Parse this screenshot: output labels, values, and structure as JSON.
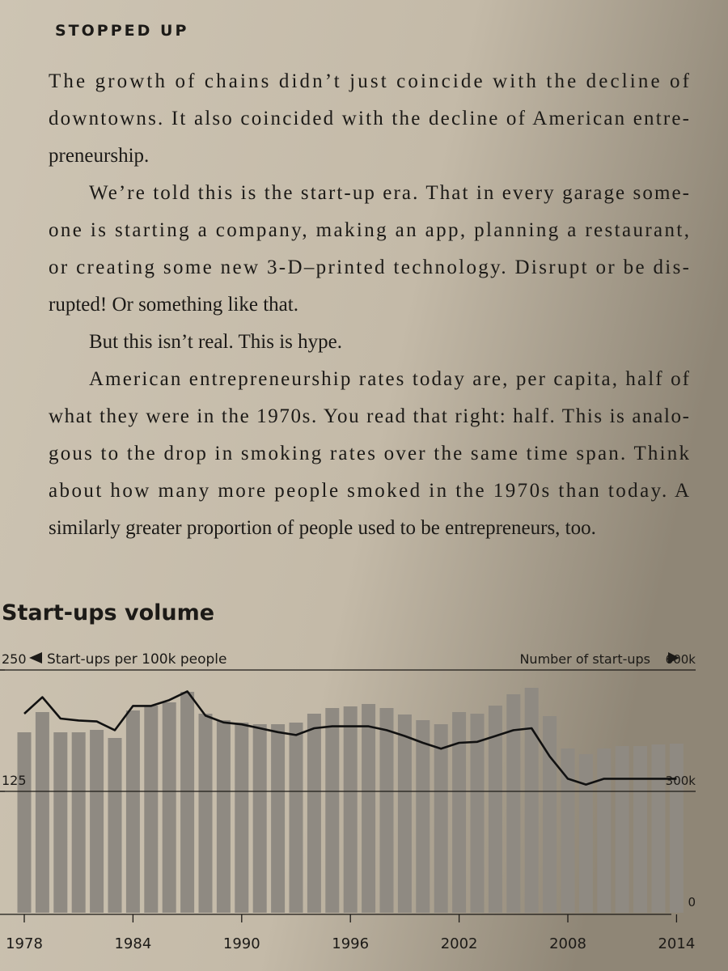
{
  "header": {
    "title": "STOPPED UP"
  },
  "body": [
    {
      "lines": [
        "The growth of chains didn’t just coincide with the decline of",
        "downtowns. It also coincided with the decline of American entre-",
        "preneurship."
      ]
    },
    {
      "lines": [
        "We’re told this is the start-up era. That in every garage some-",
        "one is starting a company, making an app, planning a restaurant,",
        "or creating some new 3-D–printed technology. Disrupt or be dis-",
        "rupted! Or something like that."
      ]
    },
    {
      "lines": [
        "But this isn’t real. This is hype."
      ]
    },
    {
      "lines": [
        "American entrepreneurship rates today are, per capita, half of",
        "what they were in the 1970s. You read that right: half. This is analo-",
        "gous to the drop in smoking rates over the same time span. Think",
        "about how many more people smoked in the 1970s than today. A",
        "similarly greater proportion of people used to be entrepreneurs, too."
      ]
    }
  ],
  "chart_data": {
    "type": "bar",
    "title": "Start-ups volume",
    "y_label": "Start-ups per 100k people",
    "y2_label": "Number of start-ups",
    "categories": [
      "1978",
      null,
      null,
      null,
      null,
      null,
      "1984",
      null,
      null,
      null,
      null,
      null,
      "1990",
      null,
      null,
      null,
      null,
      null,
      "1996",
      null,
      null,
      null,
      null,
      null,
      "2002",
      null,
      null,
      null,
      null,
      null,
      "2008",
      null,
      null,
      null,
      null,
      null,
      "2014"
    ],
    "series": [
      {
        "color": "#8f8a82",
        "axis": "y2",
        "values": [
          446000,
          496000,
          446000,
          446000,
          452000,
          432000,
          500000,
          512000,
          520000,
          546000,
          492000,
          476000,
          470000,
          466000,
          466000,
          470000,
          492000,
          506000,
          510000,
          516000,
          506000,
          490000,
          476000,
          466000,
          496000,
          492000,
          512000,
          540000,
          556000,
          486000,
          406000,
          392000,
          406000,
          412000,
          412000,
          416000,
          418000
        ]
      },
      {
        "color": "#111111",
        "axis": "y",
        "values": [
          205,
          222,
          200,
          198,
          197,
          188,
          213,
          213,
          219,
          228,
          203,
          196,
          194,
          190,
          186,
          183,
          190,
          192,
          192,
          192,
          188,
          182,
          175,
          169,
          175,
          176,
          182,
          188,
          190,
          161,
          138,
          132,
          138,
          138,
          138,
          138,
          138
        ]
      }
    ],
    "ylim": [
      0,
      250
    ],
    "yticks": [
      125,
      250
    ],
    "y2lim": [
      0,
      600000
    ],
    "y2ticks": [
      0,
      {
        "value": 300000,
        "label": "300k"
      },
      {
        "value": 600000,
        "label": "600k"
      }
    ]
  }
}
